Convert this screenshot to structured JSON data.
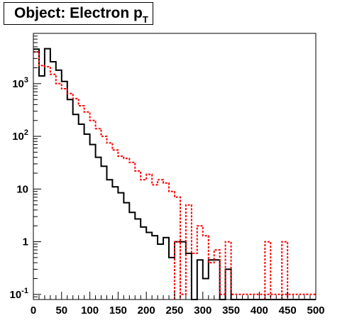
{
  "chart_data": {
    "type": "histogram-step",
    "title": "Object: Electron p",
    "title_subscript": "T",
    "xlim": [
      0,
      500
    ],
    "ylim": [
      0.08,
      9000
    ],
    "y_scale": "log",
    "bin_width": 10,
    "x_ticks": [
      "0",
      "50",
      "100",
      "150",
      "200",
      "250",
      "300",
      "350",
      "400",
      "450",
      "500"
    ],
    "y_ticks": [
      {
        "value": 0.1,
        "base": "10",
        "exp": "-1"
      },
      {
        "value": 1,
        "base": "1",
        "exp": ""
      },
      {
        "value": 10,
        "base": "10",
        "exp": ""
      },
      {
        "value": 100,
        "base": "10",
        "exp": "2"
      },
      {
        "value": 1000,
        "base": "10",
        "exp": "3"
      }
    ],
    "series": [
      {
        "color": "#000000",
        "style": "solid",
        "values": [
          4500,
          1400,
          4600,
          2600,
          1800,
          1100,
          500,
          260,
          170,
          110,
          70,
          40,
          27,
          15,
          11,
          8.5,
          5.5,
          3.6,
          2.7,
          1.9,
          1.5,
          1.3,
          0.9,
          1.2,
          0.5,
          1.0,
          1.0,
          0.6,
          0.08,
          0.45,
          0.2,
          0.45,
          0.45,
          0.08,
          0.3,
          0.08,
          0.08,
          0.08,
          0.08,
          0.08,
          0.08,
          0.08,
          0.08,
          0.08,
          0.08,
          0.08,
          0.08,
          0.08,
          0.08,
          0.08
        ]
      },
      {
        "color": "#ff0000",
        "style": "dashed",
        "values": [
          4000,
          2200,
          2100,
          1500,
          1000,
          800,
          650,
          520,
          380,
          290,
          200,
          140,
          100,
          75,
          55,
          42,
          38,
          32,
          22,
          15,
          19,
          12,
          15,
          13,
          9,
          7,
          0.1,
          5,
          0.6,
          2,
          1.3,
          0.4,
          0.7,
          0.1,
          1,
          0.1,
          0.1,
          0.1,
          0.1,
          0.1,
          0.1,
          0.1,
          0.1,
          0.1,
          0.1,
          0.1,
          0.1,
          0.1,
          0.1,
          0.1
        ]
      }
    ],
    "extra_red_spikes": [
      {
        "x0": 250,
        "x1": 260,
        "y": 1.0
      },
      {
        "x0": 410,
        "x1": 420,
        "y": 1.0
      },
      {
        "x0": 440,
        "x1": 450,
        "y": 1.0
      }
    ]
  }
}
